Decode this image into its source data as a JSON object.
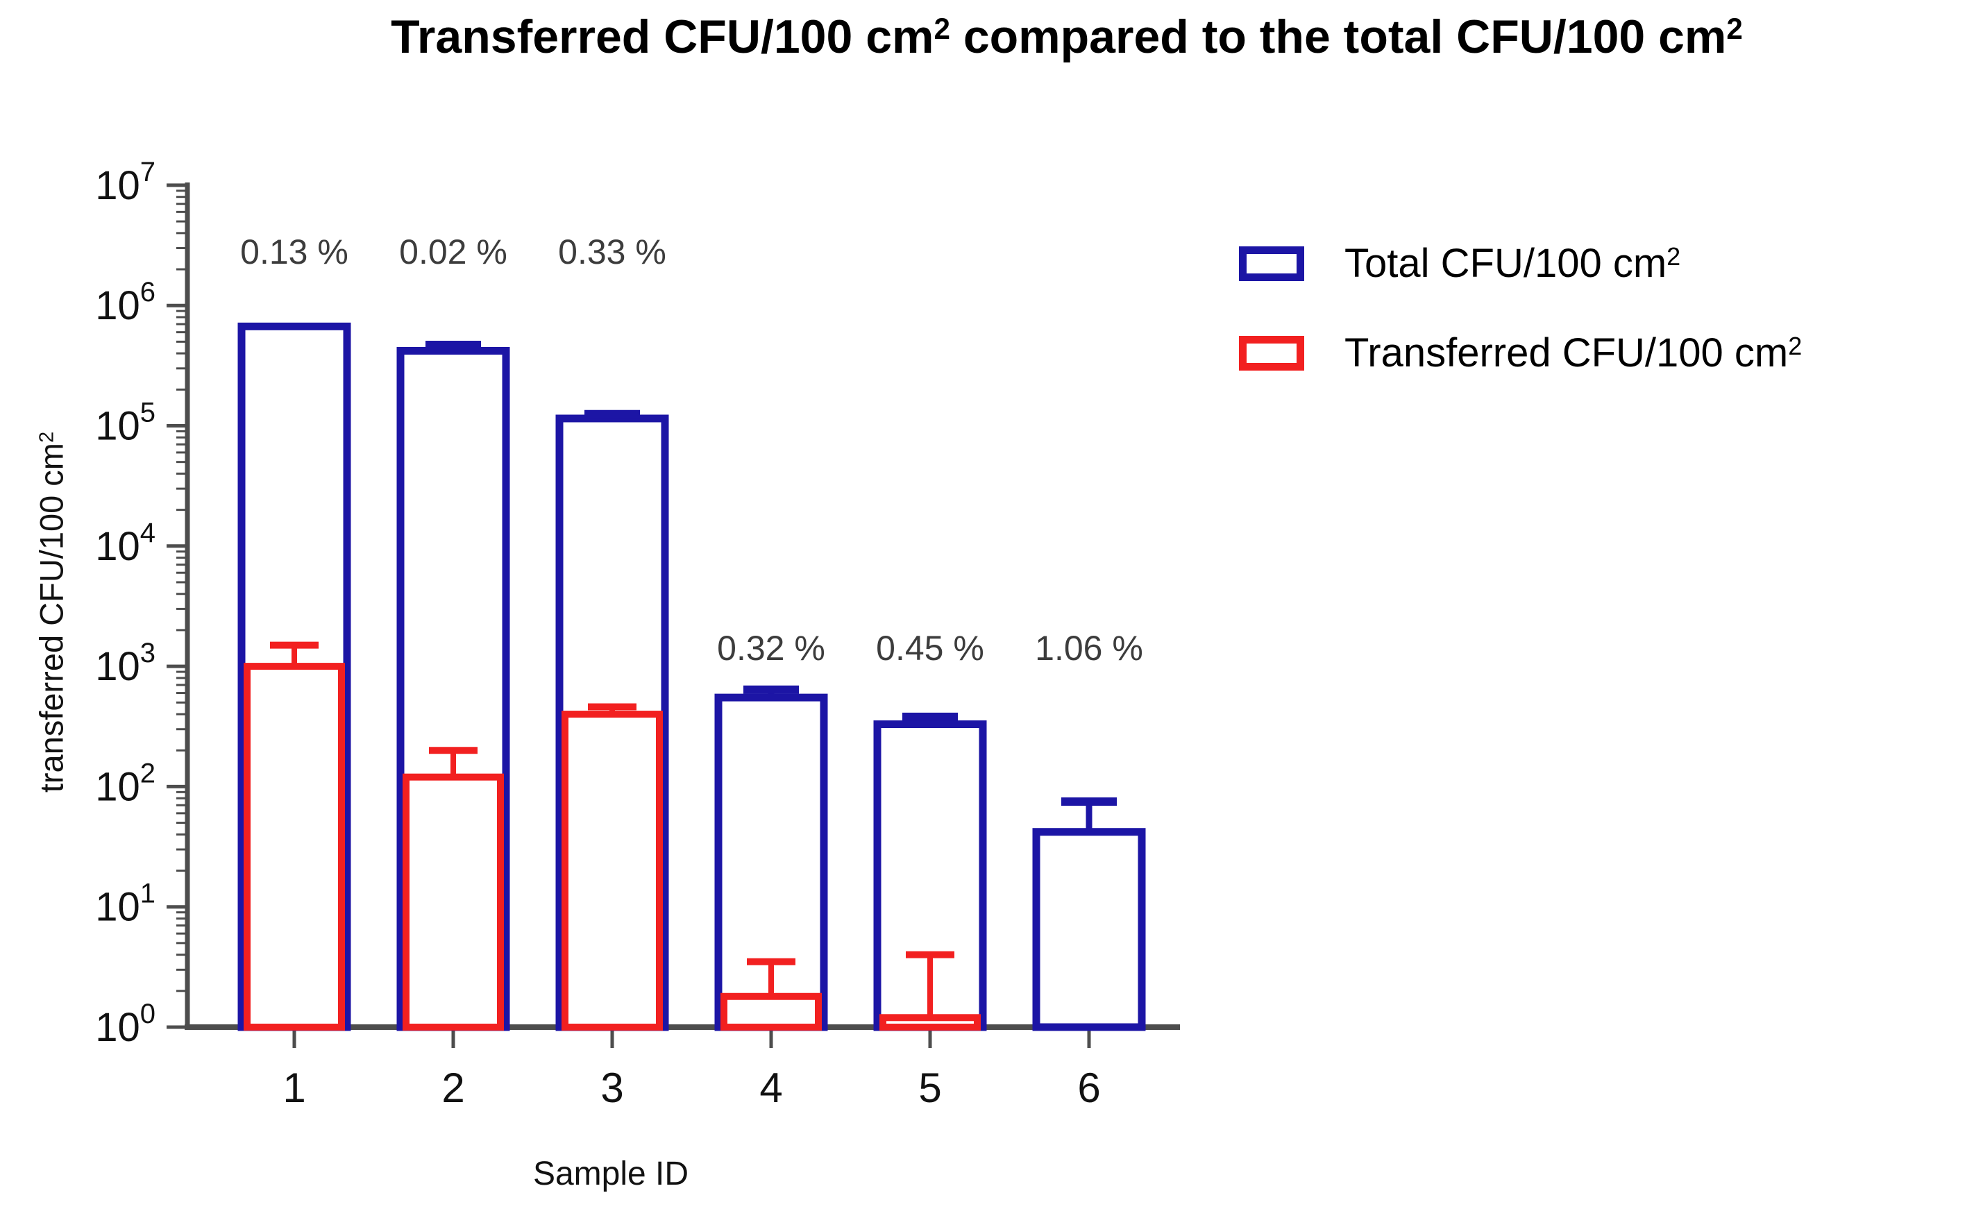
{
  "title": "Transferred CFU/100 cm² compared to the total CFU/100 cm²",
  "legend": {
    "items": [
      {
        "label": "Total CFU/100 cm²",
        "color": "#1c15a5"
      },
      {
        "label": "Transferred CFU/100 cm²",
        "color": "#f22020"
      }
    ]
  },
  "axes": {
    "y": {
      "label": "transferred CFU/100 cm²",
      "scale": "log10",
      "tick_exponents": [
        0,
        1,
        2,
        3,
        4,
        5,
        6,
        7
      ]
    },
    "x": {
      "label": "Sample ID",
      "ticks": [
        "1",
        "2",
        "3",
        "4",
        "5",
        "6"
      ]
    }
  },
  "colors": {
    "total": "#1c15a5",
    "transferred": "#f22020",
    "axis": "#4d4d4d",
    "tick_text": "#111111",
    "percent_text": "#3c3c3c"
  },
  "chart_data": {
    "type": "bar",
    "title": "Transferred CFU/100 cm² compared to the total CFU/100 cm²",
    "xlabel": "Sample ID",
    "ylabel": "transferred CFU/100 cm²",
    "y_scale": "log10",
    "ylim": [
      1,
      10000000
    ],
    "grid": false,
    "legend_position": "right",
    "categories": [
      "1",
      "2",
      "3",
      "4",
      "5",
      "6"
    ],
    "series": [
      {
        "name": "Total CFU/100 cm²",
        "color": "#1c15a5",
        "values": [
          670000,
          420000,
          115000,
          550,
          330,
          42
        ],
        "error_high": [
          null,
          470000,
          125000,
          640,
          380,
          75
        ]
      },
      {
        "name": "Transferred CFU/100 cm²",
        "color": "#f22020",
        "values": [
          1000,
          120,
          400,
          1.8,
          1.2,
          null
        ],
        "error_high": [
          1500,
          200,
          460,
          3.5,
          4.0,
          null
        ]
      }
    ],
    "percent_labels": [
      "0.13 %",
      "0.02 %",
      "0.33 %",
      "0.32 %",
      "0.45 %",
      "1.06 %"
    ]
  }
}
